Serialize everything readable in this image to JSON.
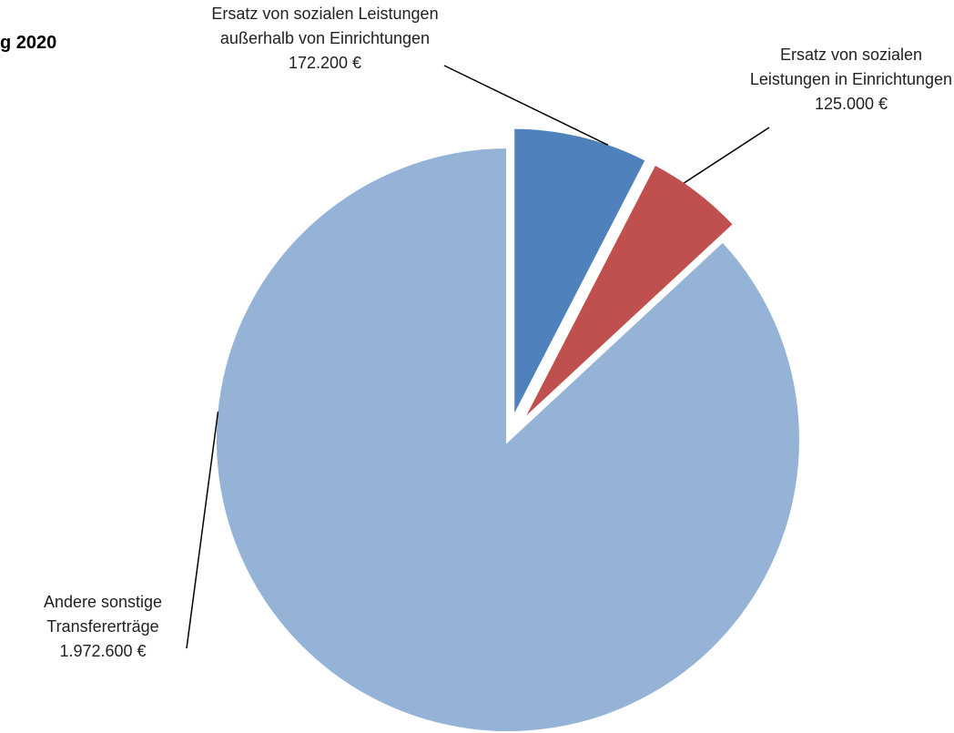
{
  "chart_data": {
    "type": "pie",
    "title": "g 2020",
    "categories": [
      "Ersatz von sozialen Leistungen außerhalb von Einrichtungen",
      "Ersatz von sozialen Leistungen in Einrichtungen",
      "Andere sonstige Transfererträge"
    ],
    "values": [
      172200,
      125000,
      1972600
    ],
    "value_labels": [
      "172.200 €",
      "125.000 €",
      "1.972.600 €"
    ],
    "colors": [
      "#4f81bd",
      "#c0504d",
      "#95b3d7"
    ]
  }
}
